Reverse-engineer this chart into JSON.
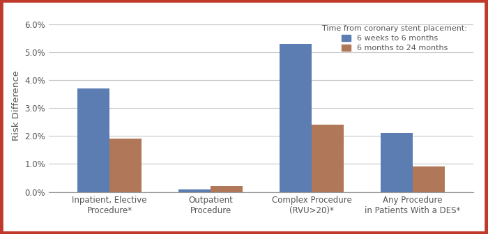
{
  "categories": [
    "Inpatient, Elective\nProcedure*",
    "Outpatient\nProcedure",
    "Complex Procedure\n(RVU>20)*",
    "Any Procedure\nin Patients With a DES*"
  ],
  "blue_values": [
    0.037,
    0.001,
    0.053,
    0.021
  ],
  "brown_values": [
    0.019,
    0.002,
    0.024,
    0.009
  ],
  "blue_color": "#5B7DB1",
  "brown_color": "#B07858",
  "ylabel": "Risk Difference",
  "ylim": [
    0,
    0.062
  ],
  "yticks": [
    0.0,
    0.01,
    0.02,
    0.03,
    0.04,
    0.05,
    0.06
  ],
  "ytick_labels": [
    "0.0%",
    "1.0%",
    "2.0%",
    "3.0%",
    "4.0%",
    "5.0%",
    "6.0%"
  ],
  "legend_title": "Time from coronary stent placement:",
  "legend_label_blue": "6 weeks to 6 months",
  "legend_label_brown": "6 months to 24 months",
  "bar_width": 0.32,
  "background_color": "#FFFFFF",
  "plot_bg_color": "#F5F5F0",
  "grid_color": "#C8C8C8",
  "border_color": "#C0392B",
  "tick_color": "#555555",
  "label_fontsize": 8.5,
  "ylabel_fontsize": 9.5
}
